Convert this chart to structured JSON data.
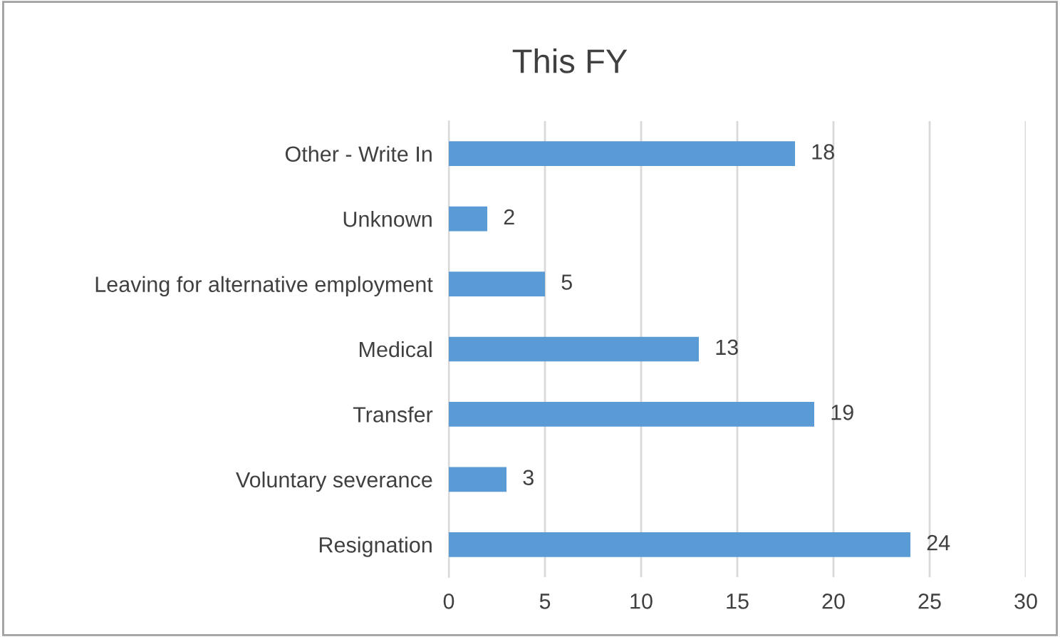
{
  "chart_data": {
    "type": "bar",
    "title": "This FY",
    "orientation": "horizontal",
    "categories": [
      "Other - Write In",
      "Unknown",
      "Leaving for alternative employment",
      "Medical",
      "Transfer",
      "Voluntary severance",
      "Resignation"
    ],
    "values": [
      18,
      2,
      5,
      13,
      19,
      3,
      24
    ],
    "color": "#5b9bd5",
    "xlim": [
      0,
      30
    ],
    "xticks": [
      0,
      5,
      10,
      15,
      20,
      25,
      30
    ],
    "grid": "x",
    "data_labels": true
  }
}
